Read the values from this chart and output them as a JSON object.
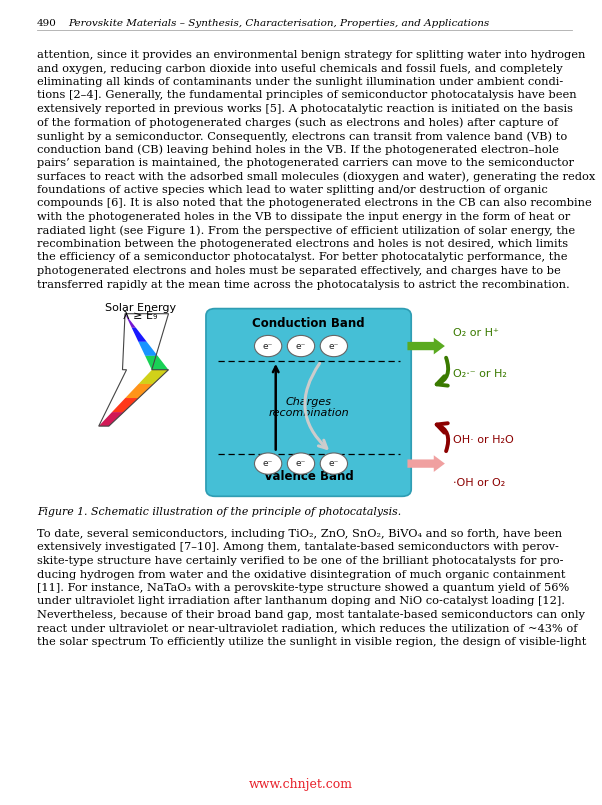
{
  "page_number": "490",
  "header_text": "Perovskite Materials – Synthesis, Characterisation, Properties, and Applications",
  "bg_color": "#ffffff",
  "text_color": "#000000",
  "paragraph1_lines": [
    "attention, since it provides an environmental benign strategy for splitting water into hydrogen",
    "and oxygen, reducing carbon dioxide into useful chemicals and fossil fuels, and completely",
    "eliminating all kinds of contaminants under the sunlight illumination under ambient condi-",
    "tions [2–4]. Generally, the fundamental principles of semiconductor photocatalysis have been",
    "extensively reported in previous works [5]. A photocatalytic reaction is initiated on the basis",
    "of the formation of photogenerated charges (such as electrons and holes) after capture of",
    "sunlight by a semiconductor. Consequently, electrons can transit from valence band (VB) to",
    "conduction band (CB) leaving behind holes in the VB. If the photogenerated electron–hole",
    "pairs’ separation is maintained, the photogenerated carriers can move to the semiconductor",
    "surfaces to react with the adsorbed small molecules (dioxygen and water), generating the redox",
    "foundations of active species which lead to water splitting and/or destruction of organic",
    "compounds [6]. It is also noted that the photogenerated electrons in the CB can also recombine",
    "with the photogenerated holes in the VB to dissipate the input energy in the form of heat or",
    "radiated light (see Figure 1). From the perspective of efficient utilization of solar energy, the",
    "recombination between the photogenerated electrons and holes is not desired, which limits",
    "the efficiency of a semiconductor photocatalyst. For better photocatalytic performance, the",
    "photogenerated electrons and holes must be separated effectively, and charges have to be",
    "transferred rapidly at the mean time across the photocatalysis to astrict the recombination."
  ],
  "paragraph2_lines": [
    "To date, several semiconductors, including TiO₂, ZnO, SnO₂, BiVO₄ and so forth, have been",
    "extensively investigated [7–10]. Among them, tantalate-based semiconductors with perov-",
    "skite-type structure have certainly verified to be one of the brilliant photocatalysts for pro-",
    "ducing hydrogen from water and the oxidative disintegration of much organic containment",
    "[11]. For instance, NaTaO₃ with a perovskite-type structure showed a quantum yield of 56%",
    "under ultraviolet light irradiation after lanthanum doping and NiO co-catalyst loading [12].",
    "Nevertheless, because of their broad band gap, most tantalate-based semiconductors can only",
    "react under ultraviolet or near-ultraviolet radiation, which reduces the utilization of ~43% of",
    "the solar spectrum To efficiently utilize the sunlight in visible region, the design of visible-light"
  ],
  "figure_caption": "Figure 1. Schematic illustration of the principle of photocatalysis.",
  "watermark": "www.chnjet.com",
  "watermark_color": "#e8212a",
  "diagram": {
    "box_color": "#3bbcd4",
    "box_edge_color": "#2899b0",
    "conduction_band_label": "Conduction Band",
    "valence_band_label": "Valence Band",
    "charges_label": "Charges\nrecombination",
    "solar_label1": "Solar Energy",
    "solar_label2": "λ ≥ E₉",
    "right_top_label1": "O₂ or H⁺",
    "right_top_label2": "O₂⋅⁻ or H₂",
    "right_bot_label1": "OH‧ or H₂O",
    "right_bot_label2": "⋅OH or O₂",
    "green_color": "#5aaa20",
    "dark_green_color": "#3a7a00",
    "pink_color": "#f0a0a0",
    "dark_red_color": "#8b0000"
  }
}
